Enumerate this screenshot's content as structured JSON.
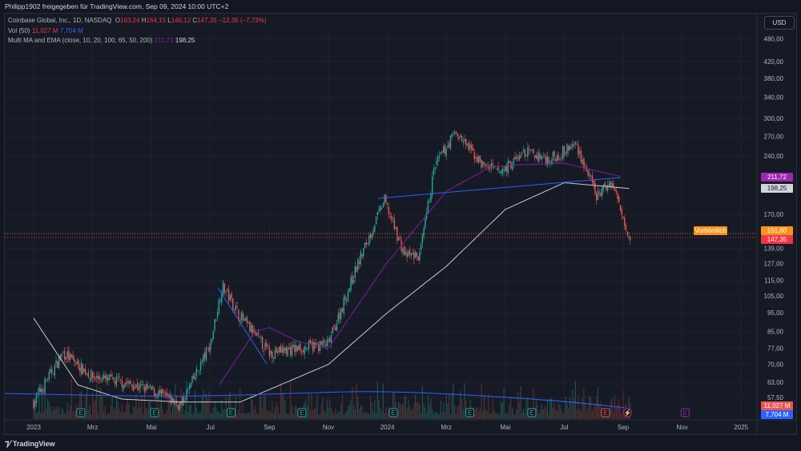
{
  "header": {
    "title": "Philipp1902 freigegeben für TradingView.com, Sep 09, 2024 10:00 UTC+2"
  },
  "legend": {
    "symbol": "Coinbase Global, Inc., 1D, NASDAQ",
    "o_label": "O",
    "o": "163,24",
    "h_label": "H",
    "h": "164,15",
    "l_label": "L",
    "l": "146,12",
    "c_label": "C",
    "c": "147,35",
    "change": "−12,35 (−7,73%)",
    "vol_label": "Vol (50)",
    "vol": "11,027 M",
    "vol_ma": "7,704 M",
    "ma_label": "Multi MA and EMA (close, 10, 20, 100, 65, 50, 200)",
    "ma1": "211,72",
    "ma2": "198,25"
  },
  "currency_button": "USD",
  "price_tags": {
    "ma1": "211,72",
    "ma2": "198,25",
    "premarket_label": "Vorbörslich",
    "premarket": "151,60",
    "last": "147,35",
    "vol": "11,027 M",
    "vol_ma": "7,704 M"
  },
  "colors": {
    "up": "#26a69a",
    "down": "#ef5350",
    "ma_purple": "#7b1fa2",
    "ma_white": "#d1d4dc",
    "trend": "#2962ff",
    "premarket": "#f7931a"
  },
  "footer": {
    "brand": "TradingView"
  },
  "chart_data": {
    "type": "candlestick",
    "scale": "log",
    "y_ticks": [
      "480,00",
      "420,00",
      "380,00",
      "340,00",
      "300,00",
      "270,00",
      "240,00",
      "170,00",
      "139,00",
      "127,00",
      "115,00",
      "105,00",
      "95,00",
      "85,00",
      "77,00",
      "70,00",
      "63,00",
      "57,50"
    ],
    "y_tick_values": [
      480,
      420,
      380,
      340,
      300,
      270,
      240,
      170,
      139,
      127,
      115,
      105,
      95,
      85,
      77,
      70,
      63,
      57.5
    ],
    "x_ticks": [
      "2023",
      "Mrz",
      "Mai",
      "Jul",
      "Sep",
      "Nov",
      "2024",
      "Mrz",
      "Mai",
      "Jul",
      "Sep",
      "Nov",
      "2025"
    ],
    "x_tick_index": [
      0,
      2,
      4,
      6,
      8,
      10,
      12,
      14,
      16,
      18,
      20,
      22,
      24
    ],
    "price_path_months": [
      0,
      1,
      2,
      3,
      4,
      5,
      6,
      6.4,
      7,
      8,
      9,
      10,
      11,
      11.9,
      12.6,
      13.1,
      13.6,
      14.3,
      15.2,
      15.8,
      16.7,
      17.5,
      18.4,
      19.1,
      19.6,
      20.25
    ],
    "price_path": [
      56,
      75,
      65,
      63,
      60,
      55,
      79,
      112,
      93,
      75,
      77,
      79,
      127,
      185,
      133,
      133,
      225,
      277,
      229,
      218,
      246,
      235,
      258,
      189,
      207,
      147
    ],
    "ma200_months": [
      0,
      1.5,
      3,
      5,
      7,
      10,
      12,
      14,
      16,
      18,
      20.25
    ],
    "ma200": [
      92,
      62,
      57,
      56,
      56,
      70,
      95,
      125,
      175,
      205,
      198
    ],
    "ma_purple_months": [
      6.3,
      7.5,
      8,
      9,
      10,
      12,
      14,
      15.5,
      16.5,
      18,
      20
    ],
    "ma_purple": [
      62,
      85,
      87,
      80,
      77,
      128,
      195,
      225,
      228,
      230,
      212
    ],
    "earnings_markers_months": [
      1.6,
      4.1,
      6.7,
      9.1,
      12.2,
      14.8,
      16.9,
      19.4
    ],
    "dividend_marker_month": 20.15,
    "future_marker_month": 22.1
  }
}
